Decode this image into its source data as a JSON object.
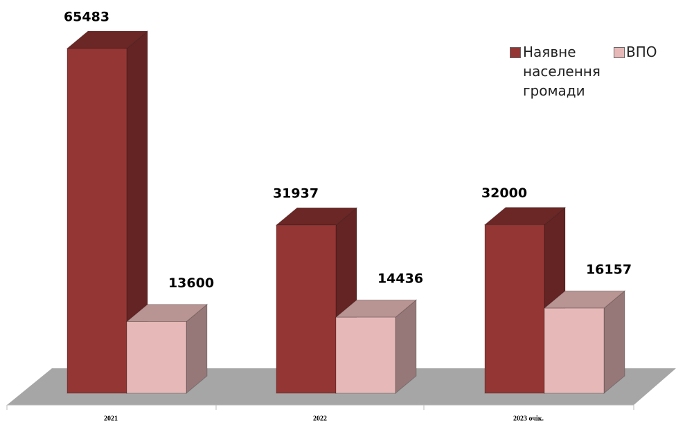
{
  "chart_data": {
    "type": "bar3d",
    "categories": [
      "2021",
      "2022",
      "2023 очік."
    ],
    "series": [
      {
        "name": "Наявне населення громади",
        "color": "#943634",
        "values": [
          65483,
          31937,
          32000
        ]
      },
      {
        "name": "ВПО",
        "color": "#e6b9b8",
        "values": [
          13600,
          14436,
          16157
        ]
      }
    ],
    "legend": "top-right"
  }
}
